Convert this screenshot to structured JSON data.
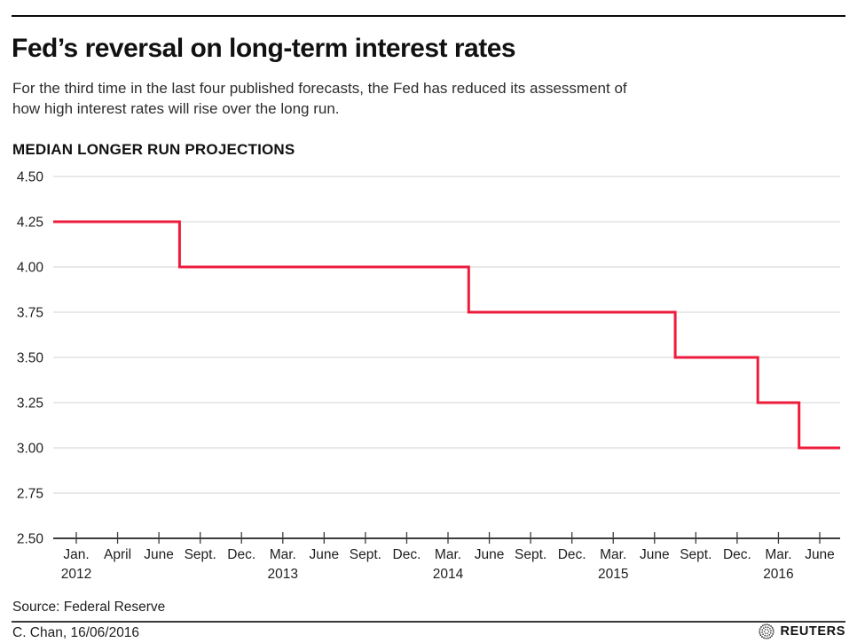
{
  "masthead": {
    "title": "Fed’s reversal on long-term interest rates",
    "subtitle_lines": [
      "For the third time in the last four published forecasts, the Fed has reduced its assessment of",
      "how high interest rates will rise over the long run."
    ]
  },
  "chart_data": {
    "type": "line",
    "subtype": "step",
    "step_align": "mid",
    "title": "MEDIAN LONGER RUN PROJECTIONS",
    "series": [
      {
        "name": "MEDIAN LONGER RUN PROJECTIONS",
        "values": [
          4.25,
          4.25,
          4.25,
          4.0,
          4.0,
          4.0,
          4.0,
          4.0,
          4.0,
          4.0,
          3.75,
          3.75,
          3.75,
          3.75,
          3.75,
          3.5,
          3.5,
          3.25,
          3.0
        ]
      }
    ],
    "x_ticks": [
      {
        "month": "Jan.",
        "year": "2012"
      },
      {
        "month": "April"
      },
      {
        "month": "June"
      },
      {
        "month": "Sept."
      },
      {
        "month": "Dec."
      },
      {
        "month": "Mar.",
        "year": "2013"
      },
      {
        "month": "June"
      },
      {
        "month": "Sept."
      },
      {
        "month": "Dec."
      },
      {
        "month": "Mar.",
        "year": "2014"
      },
      {
        "month": "June"
      },
      {
        "month": "Sept."
      },
      {
        "month": "Dec."
      },
      {
        "month": "Mar.",
        "year": "2015"
      },
      {
        "month": "June"
      },
      {
        "month": "Sept."
      },
      {
        "month": "Dec."
      },
      {
        "month": "Mar.",
        "year": "2016"
      },
      {
        "month": "June"
      }
    ],
    "ylim": [
      2.5,
      4.5
    ],
    "y_ticks": [
      2.5,
      2.75,
      3.0,
      3.25,
      3.5,
      3.75,
      4.0,
      4.25,
      4.5
    ],
    "y_tick_decimals": 2,
    "grid": "horizontal",
    "legend": "none",
    "line_color": "#ed1c3c",
    "grid_color": "#dcdcdc",
    "axis_color": "#3d3d3d"
  },
  "source": "Source: Federal Reserve",
  "footer": {
    "credit": "C. Chan, 16/06/2016",
    "brand": "REUTERS",
    "logo_icon": "reuters-orb-icon"
  }
}
